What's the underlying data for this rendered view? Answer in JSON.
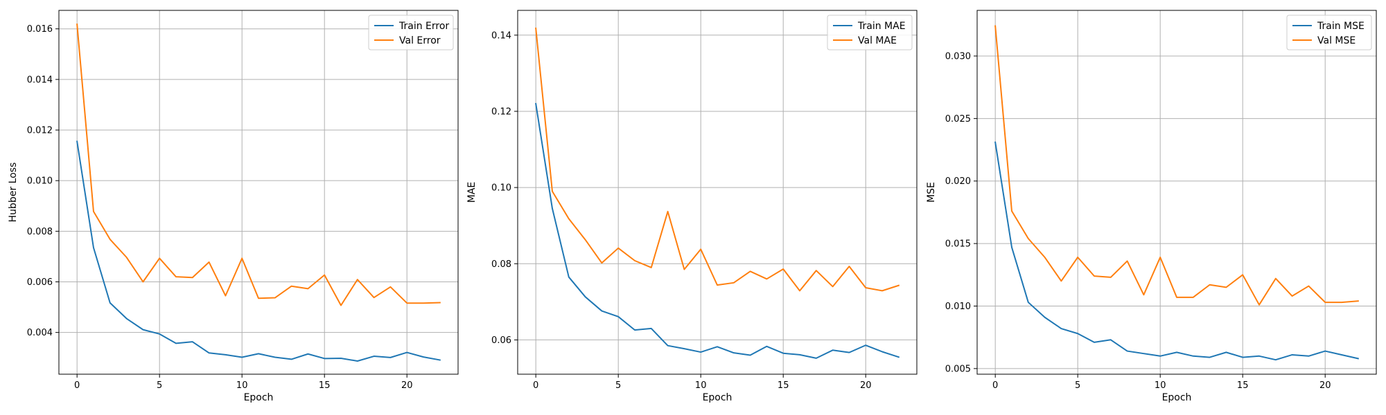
{
  "figure": {
    "background": "#ffffff",
    "series_colors": [
      "#1f77b4",
      "#ff7f0e"
    ]
  },
  "chart_data": [
    {
      "type": "line",
      "xlabel": "Epoch",
      "ylabel": "Hubber Loss",
      "xlim": [
        -1.1,
        23.1
      ],
      "ylim": [
        0.00235,
        0.01673
      ],
      "xticks": [
        0,
        5,
        10,
        15,
        20
      ],
      "yticks": [
        0.004,
        0.006,
        0.008,
        0.01,
        0.012,
        0.014,
        0.016
      ],
      "ytick_labels": [
        "0.004",
        "0.006",
        "0.008",
        "0.010",
        "0.012",
        "0.014",
        "0.016"
      ],
      "grid": true,
      "legend": "top-right",
      "x": [
        0,
        1,
        2,
        3,
        4,
        5,
        6,
        7,
        8,
        9,
        10,
        11,
        12,
        13,
        14,
        15,
        16,
        17,
        18,
        19,
        20,
        21,
        22
      ],
      "series": [
        {
          "name": "Train Error",
          "color": "#1f77b4",
          "values": [
            0.01155,
            0.00735,
            0.00517,
            0.00455,
            0.00411,
            0.00394,
            0.00357,
            0.00363,
            0.00319,
            0.00312,
            0.00302,
            0.00316,
            0.00302,
            0.00294,
            0.00315,
            0.00297,
            0.00298,
            0.00287,
            0.00306,
            0.00301,
            0.00321,
            0.00303,
            0.00291
          ]
        },
        {
          "name": "Val Error",
          "color": "#ff7f0e",
          "values": [
            0.01618,
            0.00878,
            0.00768,
            0.00697,
            0.006,
            0.00693,
            0.0062,
            0.00617,
            0.00678,
            0.00545,
            0.00693,
            0.00535,
            0.00537,
            0.00583,
            0.00573,
            0.00627,
            0.00507,
            0.00609,
            0.00538,
            0.0058,
            0.00516,
            0.00516,
            0.00518
          ]
        }
      ]
    },
    {
      "type": "line",
      "xlabel": "Epoch",
      "ylabel": "MAE",
      "xlim": [
        -1.1,
        23.1
      ],
      "ylim": [
        0.051,
        0.1465
      ],
      "xticks": [
        0,
        5,
        10,
        15,
        20
      ],
      "yticks": [
        0.06,
        0.08,
        0.1,
        0.12,
        0.14
      ],
      "ytick_labels": [
        "0.06",
        "0.08",
        "0.10",
        "0.12",
        "0.14"
      ],
      "grid": true,
      "legend": "top-right",
      "x": [
        0,
        1,
        2,
        3,
        4,
        5,
        6,
        7,
        8,
        9,
        10,
        11,
        12,
        13,
        14,
        15,
        16,
        17,
        18,
        19,
        20,
        21,
        22
      ],
      "series": [
        {
          "name": "Train MAE",
          "color": "#1f77b4",
          "values": [
            0.122,
            0.0945,
            0.0765,
            0.0713,
            0.0676,
            0.0661,
            0.0626,
            0.063,
            0.0585,
            0.0577,
            0.0568,
            0.0582,
            0.0566,
            0.056,
            0.0583,
            0.0565,
            0.0561,
            0.0552,
            0.0573,
            0.0567,
            0.0586,
            0.0569,
            0.0555
          ]
        },
        {
          "name": "Val MAE",
          "color": "#ff7f0e",
          "values": [
            0.1418,
            0.099,
            0.0918,
            0.0863,
            0.0802,
            0.0841,
            0.0808,
            0.079,
            0.0937,
            0.0785,
            0.0838,
            0.0744,
            0.075,
            0.078,
            0.076,
            0.0786,
            0.0729,
            0.0782,
            0.074,
            0.0793,
            0.0737,
            0.0729,
            0.0743
          ]
        }
      ]
    },
    {
      "type": "line",
      "xlabel": "Epoch",
      "ylabel": "MSE",
      "xlim": [
        -1.1,
        23.1
      ],
      "ylim": [
        0.00455,
        0.03365
      ],
      "xticks": [
        0,
        5,
        10,
        15,
        20
      ],
      "yticks": [
        0.005,
        0.01,
        0.015,
        0.02,
        0.025,
        0.03
      ],
      "ytick_labels": [
        "0.005",
        "0.010",
        "0.015",
        "0.020",
        "0.025",
        "0.030"
      ],
      "grid": true,
      "legend": "top-right",
      "x": [
        0,
        1,
        2,
        3,
        4,
        5,
        6,
        7,
        8,
        9,
        10,
        11,
        12,
        13,
        14,
        15,
        16,
        17,
        18,
        19,
        20,
        21,
        22
      ],
      "series": [
        {
          "name": "Train MSE",
          "color": "#1f77b4",
          "values": [
            0.0231,
            0.0147,
            0.0103,
            0.0091,
            0.0082,
            0.0078,
            0.0071,
            0.0073,
            0.0064,
            0.0062,
            0.006,
            0.0063,
            0.006,
            0.0059,
            0.0063,
            0.0059,
            0.006,
            0.0057,
            0.0061,
            0.006,
            0.0064,
            0.0061,
            0.0058
          ]
        },
        {
          "name": "Val MSE",
          "color": "#ff7f0e",
          "values": [
            0.0324,
            0.0176,
            0.0154,
            0.0139,
            0.012,
            0.0139,
            0.0124,
            0.0123,
            0.0136,
            0.0109,
            0.0139,
            0.0107,
            0.0107,
            0.0117,
            0.0115,
            0.0125,
            0.0101,
            0.0122,
            0.0108,
            0.0116,
            0.0103,
            0.0103,
            0.0104
          ]
        }
      ]
    }
  ]
}
